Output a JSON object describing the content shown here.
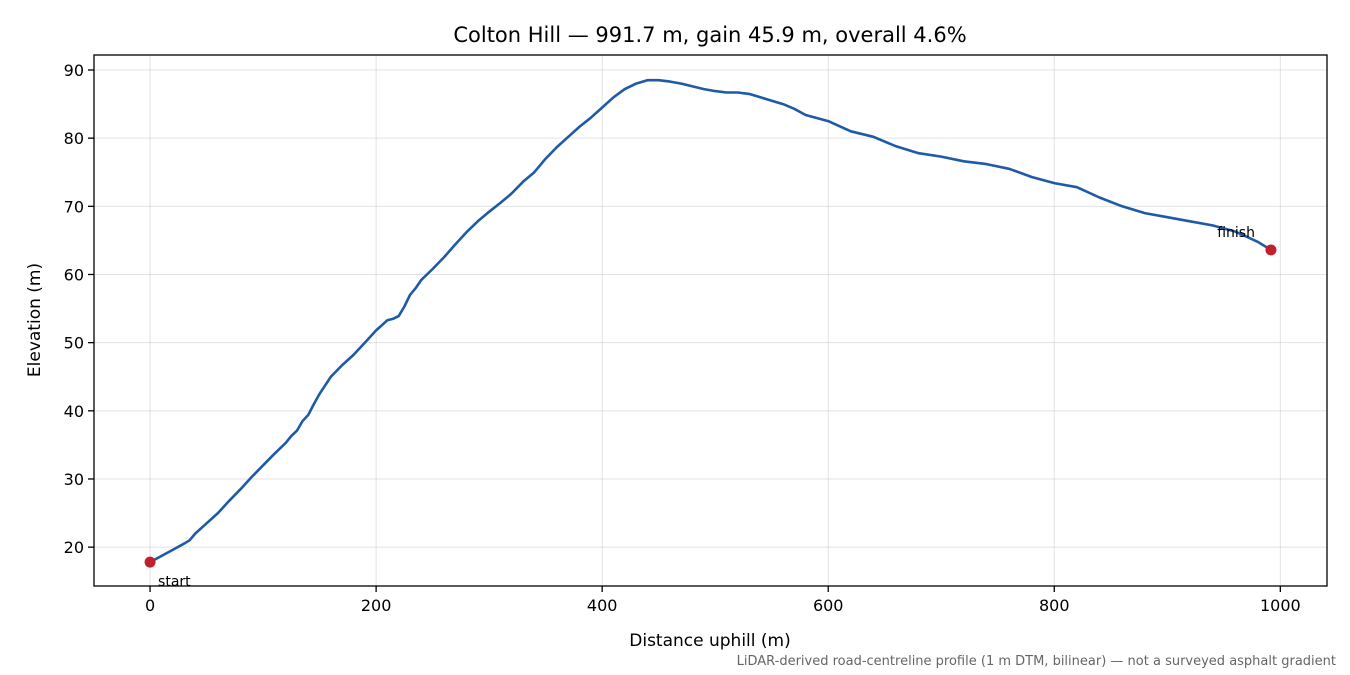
{
  "chart_data": {
    "type": "line",
    "title": "Colton Hill — 991.7 m, gain 45.9 m, overall 4.6%",
    "xlabel": "Distance uphill (m)",
    "ylabel": "Elevation (m)",
    "xlim": [
      -49.6,
      1041.3
    ],
    "ylim": [
      14.3,
      92.2
    ],
    "x_ticks": [
      0,
      200,
      400,
      600,
      800,
      1000
    ],
    "y_ticks": [
      20,
      30,
      40,
      50,
      60,
      70,
      80,
      90
    ],
    "grid": true,
    "line_color": "#1f5aa8",
    "marker_color": "#c0202a",
    "series": [
      {
        "x": [
          0,
          10,
          20,
          30,
          35,
          40,
          50,
          60,
          70,
          80,
          90,
          100,
          110,
          120,
          125,
          130,
          135,
          140,
          145,
          150,
          160,
          170,
          180,
          190,
          200,
          210,
          215,
          220,
          225,
          230,
          235,
          240,
          250,
          260,
          270,
          280,
          290,
          300,
          310,
          320,
          330,
          340,
          350,
          360,
          370,
          380,
          390,
          400,
          410,
          420,
          430,
          440,
          450,
          460,
          470,
          480,
          490,
          500,
          510,
          520,
          530,
          540,
          550,
          560,
          570,
          580,
          600,
          620,
          640,
          660,
          680,
          700,
          720,
          740,
          760,
          780,
          800,
          820,
          840,
          860,
          880,
          900,
          920,
          940,
          960,
          980,
          991.7
        ],
        "y": [
          17.8,
          18.7,
          19.6,
          20.5,
          21.0,
          22.0,
          23.5,
          25.0,
          26.8,
          28.5,
          30.3,
          32.0,
          33.7,
          35.3,
          36.3,
          37.1,
          38.5,
          39.4,
          41.0,
          42.5,
          45.0,
          46.7,
          48.2,
          50.0,
          51.8,
          53.3,
          53.5,
          53.9,
          55.3,
          57.0,
          58.0,
          59.2,
          60.8,
          62.5,
          64.4,
          66.2,
          67.8,
          69.2,
          70.5,
          71.9,
          73.6,
          75.0,
          77.0,
          78.7,
          80.2,
          81.7,
          83.0,
          84.5,
          86.0,
          87.2,
          88.0,
          88.5,
          88.5,
          88.3,
          88.0,
          87.6,
          87.2,
          86.9,
          86.7,
          86.7,
          86.5,
          86.0,
          85.5,
          85.0,
          84.3,
          83.4,
          82.5,
          81.0,
          80.2,
          78.8,
          77.8,
          77.3,
          76.6,
          76.2,
          75.5,
          74.3,
          73.4,
          72.8,
          71.3,
          70.0,
          69.0,
          68.4,
          67.8,
          67.2,
          66.3,
          64.8,
          63.6
        ]
      }
    ],
    "annotations": [
      {
        "text": "start",
        "x": 0,
        "y": 17.8
      },
      {
        "text": "finish",
        "x": 991.7,
        "y": 63.6
      }
    ],
    "footnote": "LiDAR-derived road-centreline profile (1 m DTM, bilinear) — not a surveyed asphalt gradient"
  }
}
